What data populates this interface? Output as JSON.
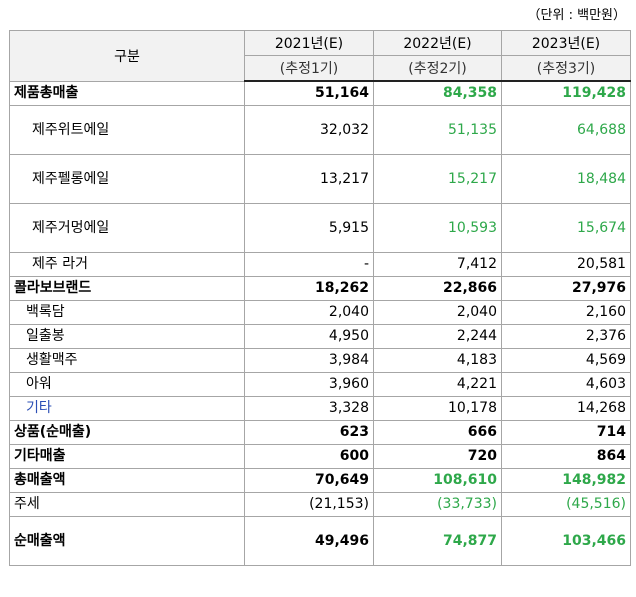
{
  "unit_note": "（단위 : 백만원）",
  "header": {
    "category": "구분",
    "cols": [
      {
        "year": "2021년(E)",
        "sub": "(추정1기)"
      },
      {
        "year": "2022년(E)",
        "sub": "(추정2기)"
      },
      {
        "year": "2023년(E)",
        "sub": "(추정3기)"
      }
    ]
  },
  "rows": [
    {
      "label": "제품총매출",
      "v": [
        "51,164",
        "84,358",
        "119,428"
      ]
    },
    {
      "label": "제주위트에일",
      "v": [
        "32,032",
        "51,135",
        "64,688"
      ]
    },
    {
      "label": "제주펠롱에일",
      "v": [
        "13,217",
        "15,217",
        "18,484"
      ]
    },
    {
      "label": "제주거멍에일",
      "v": [
        "5,915",
        "10,593",
        "15,674"
      ]
    },
    {
      "label": "제주 라거",
      "v": [
        "-",
        "7,412",
        "20,581"
      ]
    },
    {
      "label": "콜라보브랜드",
      "v": [
        "18,262",
        "22,866",
        "27,976"
      ]
    },
    {
      "label": "백록담",
      "v": [
        "2,040",
        "2,040",
        "2,160"
      ]
    },
    {
      "label": "일출봉",
      "v": [
        "4,950",
        "2,244",
        "2,376"
      ]
    },
    {
      "label": "생활맥주",
      "v": [
        "3,984",
        "4,183",
        "4,569"
      ]
    },
    {
      "label": "아워",
      "v": [
        "3,960",
        "4,221",
        "4,603"
      ]
    },
    {
      "label": "기타",
      "v": [
        "3,328",
        "10,178",
        "14,268"
      ]
    },
    {
      "label": "상품(순매출)",
      "v": [
        "623",
        "666",
        "714"
      ]
    },
    {
      "label": "기타매출",
      "v": [
        "600",
        "720",
        "864"
      ]
    },
    {
      "label": "총매출액",
      "v": [
        "70,649",
        "108,610",
        "148,982"
      ]
    },
    {
      "label": "주세",
      "v": [
        "(21,153)",
        "(33,733)",
        "(45,516)"
      ]
    },
    {
      "label": "순매출액",
      "v": [
        "49,496",
        "74,877",
        "103,466"
      ]
    }
  ],
  "colors": {
    "green": "#2ea84a",
    "blue": "#2b4fb5"
  }
}
